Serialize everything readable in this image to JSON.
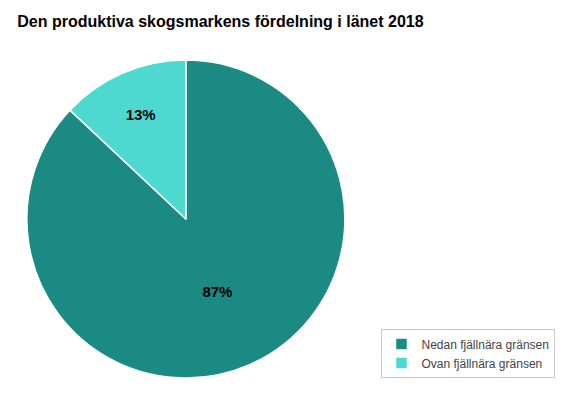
{
  "chart_data": {
    "type": "pie",
    "title": "Den produktiva skogsmarkens fördelning i länet 2018",
    "categories": [
      "Nedan fjällnära gränsen",
      "Ovan fjällnära gränsen"
    ],
    "values": [
      87,
      13
    ],
    "value_labels": [
      "87%",
      "13%"
    ],
    "colors": [
      "#1a8a82",
      "#4dd9d0"
    ],
    "data_labels": true,
    "legend": "lower right"
  }
}
